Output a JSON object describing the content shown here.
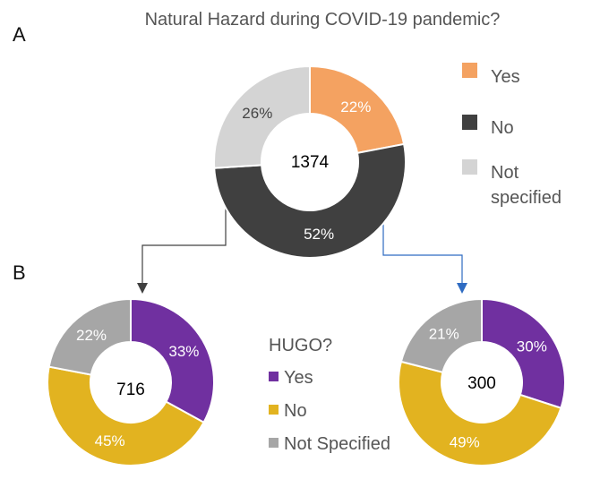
{
  "panel_labels": {
    "a": "A",
    "b": "B"
  },
  "colors": {
    "yes_orange": "#F4A261",
    "no_dark": "#404040",
    "ns_lightgray": "#D4D4D4",
    "yes_purple": "#7030A0",
    "no_gold": "#E2B320",
    "ns_gray": "#A6A6A6",
    "connector_dark": "#404040",
    "connector_blue": "#2E6BC2"
  },
  "legend_a": {
    "entries": [
      "Yes",
      "No",
      "Not specified"
    ]
  },
  "legend_b": {
    "title": "HUGO?",
    "entries": [
      "Yes",
      "No",
      "Not Specified"
    ]
  },
  "chart_data": [
    {
      "type": "pie",
      "title": "Natural Hazard during COVID-19 pandemic?",
      "center_total": "1374",
      "slices": [
        {
          "label": "Yes",
          "value": 22,
          "display": "22%",
          "color": "#F4A261"
        },
        {
          "label": "No",
          "value": 52,
          "display": "52%",
          "color": "#404040"
        },
        {
          "label": "Not specified",
          "value": 26,
          "display": "26%",
          "color": "#D4D4D4"
        }
      ],
      "legend": "right"
    },
    {
      "type": "pie",
      "title": "",
      "center_total": "716",
      "slices": [
        {
          "label": "Yes",
          "value": 33,
          "display": "33%",
          "color": "#7030A0"
        },
        {
          "label": "No",
          "value": 45,
          "display": "45%",
          "color": "#E2B320"
        },
        {
          "label": "Not Specified",
          "value": 22,
          "display": "22%",
          "color": "#A6A6A6"
        }
      ]
    },
    {
      "type": "pie",
      "title": "",
      "center_total": "300",
      "slices": [
        {
          "label": "Yes",
          "value": 30,
          "display": "30%",
          "color": "#7030A0"
        },
        {
          "label": "No",
          "value": 49,
          "display": "49%",
          "color": "#E2B320"
        },
        {
          "label": "Not Specified",
          "value": 21,
          "display": "21%",
          "color": "#A6A6A6"
        }
      ]
    }
  ]
}
